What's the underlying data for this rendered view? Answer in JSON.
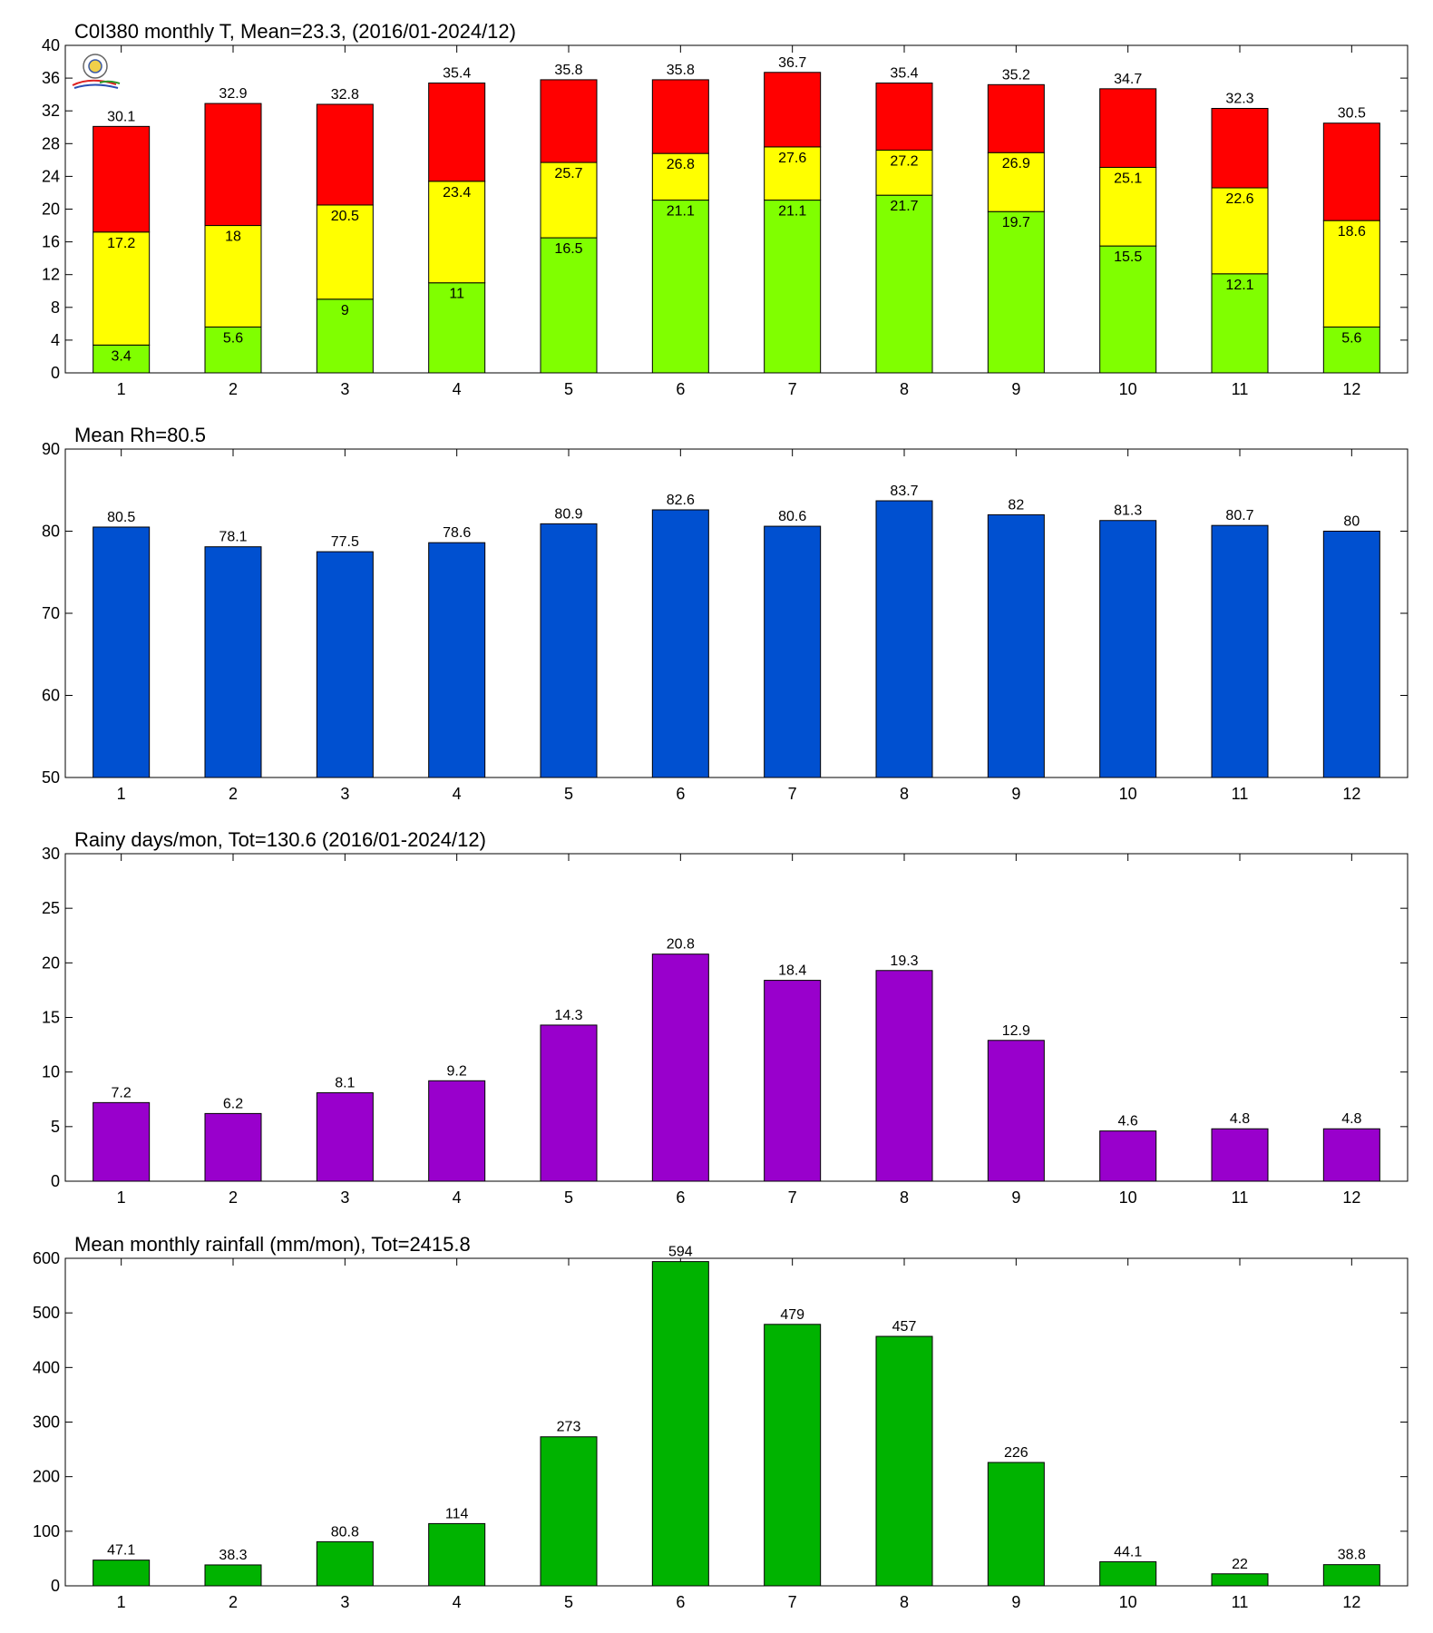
{
  "chart_data": [
    {
      "type": "bar",
      "subtype": "stacked",
      "title": "C0I380 monthly T, Mean=23.3, (2016/01-2024/12)",
      "categories": [
        "1",
        "2",
        "3",
        "4",
        "5",
        "6",
        "7",
        "8",
        "9",
        "10",
        "11",
        "12"
      ],
      "ylim": [
        0,
        40
      ],
      "yticks": [
        0,
        4,
        8,
        12,
        16,
        20,
        24,
        28,
        32,
        36,
        40
      ],
      "series": [
        {
          "role": "min",
          "color": "#80ff00",
          "values": [
            3.4,
            5.6,
            9,
            11,
            16.5,
            21.1,
            21.1,
            21.7,
            19.7,
            15.5,
            12.1,
            5.6
          ]
        },
        {
          "role": "mean",
          "color": "#ffff00",
          "values": [
            17.2,
            18,
            20.5,
            23.4,
            25.7,
            26.8,
            27.6,
            27.2,
            26.9,
            25.1,
            22.6,
            18.6
          ]
        },
        {
          "role": "max",
          "color": "#ff0000",
          "values": [
            30.1,
            32.9,
            32.8,
            35.4,
            35.8,
            35.8,
            36.7,
            35.4,
            35.2,
            34.7,
            32.3,
            30.5
          ]
        }
      ],
      "grid": false,
      "logo": {
        "icon": "observatory-seal-logo"
      }
    },
    {
      "type": "bar",
      "title": "Mean Rh=80.5",
      "categories": [
        "1",
        "2",
        "3",
        "4",
        "5",
        "6",
        "7",
        "8",
        "9",
        "10",
        "11",
        "12"
      ],
      "ylim": [
        50,
        90
      ],
      "yticks": [
        50,
        60,
        70,
        80,
        90
      ],
      "values": [
        80.5,
        78.1,
        77.5,
        78.6,
        80.9,
        82.6,
        80.6,
        83.7,
        82,
        81.3,
        80.7,
        80
      ],
      "color": "#0050d0",
      "grid": false
    },
    {
      "type": "bar",
      "title": "Rainy days/mon, Tot=130.6 (2016/01-2024/12)",
      "categories": [
        "1",
        "2",
        "3",
        "4",
        "5",
        "6",
        "7",
        "8",
        "9",
        "10",
        "11",
        "12"
      ],
      "ylim": [
        0,
        30
      ],
      "yticks": [
        0,
        5,
        10,
        15,
        20,
        25,
        30
      ],
      "values": [
        7.2,
        6.2,
        8.1,
        9.2,
        14.3,
        20.8,
        18.4,
        19.3,
        12.9,
        4.6,
        4.8,
        4.8
      ],
      "color": "#9900cc",
      "grid": false
    },
    {
      "type": "bar",
      "title": "Mean monthly rainfall (mm/mon), Tot=2415.8",
      "categories": [
        "1",
        "2",
        "3",
        "4",
        "5",
        "6",
        "7",
        "8",
        "9",
        "10",
        "11",
        "12"
      ],
      "ylim": [
        0,
        600
      ],
      "yticks": [
        0,
        100,
        200,
        300,
        400,
        500,
        600
      ],
      "values": [
        47.1,
        38.3,
        80.8,
        114,
        273,
        594,
        479,
        457,
        226,
        44.1,
        22,
        38.8
      ],
      "color": "#00b300",
      "grid": false
    }
  ]
}
